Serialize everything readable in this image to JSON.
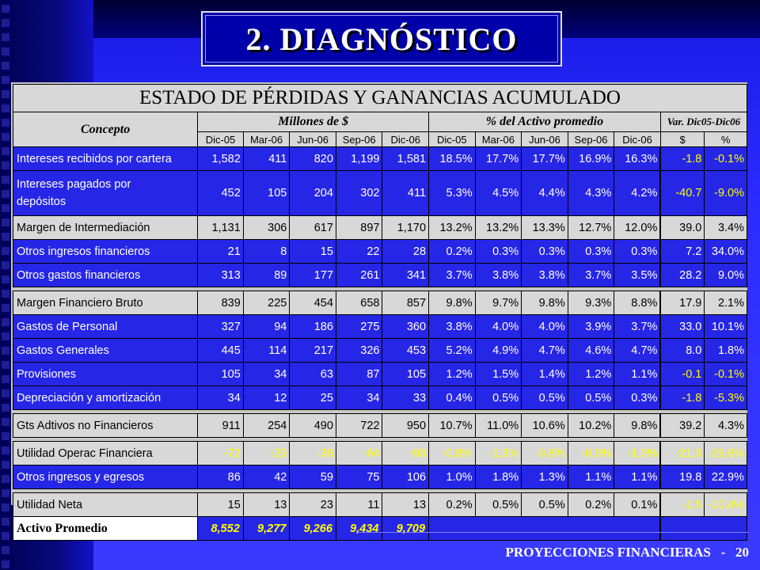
{
  "slide_title": "2. DIAGNÓSTICO",
  "table_title": "ESTADO DE PÉRDIDAS Y GANANCIAS ACUMULADO",
  "header": {
    "concepto": "Concepto",
    "group_millones": "Millones de $",
    "group_pct": "% del Activo promedio",
    "group_var": "Var. Dic05-Dic06",
    "periods": [
      "Dic-05",
      "Mar-06",
      "Jun-06",
      "Sep-06",
      "Dic-06",
      "Dic-05",
      "Mar-06",
      "Jun-06",
      "Sep-06",
      "Dic-06"
    ],
    "var_cols": [
      "$",
      "%"
    ]
  },
  "rows": [
    {
      "label": "Intereses recibidos por cartera",
      "values": [
        "1,582",
        "411",
        "820",
        "1,199",
        "1,581",
        "18.5%",
        "17.7%",
        "17.7%",
        "16.9%",
        "16.3%",
        "-1.8",
        "-0.1%"
      ]
    },
    {
      "label": "Intereses pagados por",
      "label2": "depósitos",
      "values": [
        "452",
        "105",
        "204",
        "302",
        "411",
        "5.3%",
        "4.5%",
        "4.4%",
        "4.3%",
        "4.2%",
        "-40.7",
        "-9.0%"
      ]
    },
    {
      "label": "Margen de Intermediación",
      "values": [
        "1,131",
        "306",
        "617",
        "897",
        "1,170",
        "13.2%",
        "13.2%",
        "13.3%",
        "12.7%",
        "12.0%",
        "39.0",
        "3.4%"
      ]
    },
    {
      "label": "Otros ingresos financieros",
      "values": [
        "21",
        "8",
        "15",
        "22",
        "28",
        "0.2%",
        "0.3%",
        "0.3%",
        "0.3%",
        "0.3%",
        "7.2",
        "34.0%"
      ]
    },
    {
      "label": "Otros gastos financieros",
      "values": [
        "313",
        "89",
        "177",
        "261",
        "341",
        "3.7%",
        "3.8%",
        "3.8%",
        "3.7%",
        "3.5%",
        "28.2",
        "9.0%"
      ]
    },
    {
      "label": "Margen Financiero Bruto",
      "values": [
        "839",
        "225",
        "454",
        "658",
        "857",
        "9.8%",
        "9.7%",
        "9.8%",
        "9.3%",
        "8.8%",
        "17.9",
        "2.1%"
      ]
    },
    {
      "label": "Gastos de Personal",
      "values": [
        "327",
        "94",
        "186",
        "275",
        "360",
        "3.8%",
        "4.0%",
        "4.0%",
        "3.9%",
        "3.7%",
        "33.0",
        "10.1%"
      ]
    },
    {
      "label": "Gastos Generales",
      "values": [
        "445",
        "114",
        "217",
        "326",
        "453",
        "5.2%",
        "4.9%",
        "4.7%",
        "4.6%",
        "4.7%",
        "8.0",
        "1.8%"
      ]
    },
    {
      "label": "Provisiones",
      "values": [
        "105",
        "34",
        "63",
        "87",
        "105",
        "1.2%",
        "1.5%",
        "1.4%",
        "1.2%",
        "1.1%",
        "-0.1",
        "-0.1%"
      ]
    },
    {
      "label": "Depreciación y amortización",
      "values": [
        "34",
        "12",
        "25",
        "34",
        "33",
        "0.4%",
        "0.5%",
        "0.5%",
        "0.5%",
        "0.3%",
        "-1.8",
        "-5.3%"
      ]
    },
    {
      "label": "Gts Adtivos no Financieros",
      "values": [
        "911",
        "254",
        "490",
        "722",
        "950",
        "10.7%",
        "11.0%",
        "10.6%",
        "10.2%",
        "9.8%",
        "39.2",
        "4.3%"
      ]
    },
    {
      "label": "Utilidad Operac Financiera",
      "values": [
        "-72",
        "-29",
        "-36",
        "-64",
        "-93",
        "-0.8%",
        "-1.3%",
        "-0.8%",
        "-0.9%",
        "-1.0%",
        "-21.3",
        "-29.6%"
      ]
    },
    {
      "label": "Otros ingresos y egresos",
      "values": [
        "86",
        "42",
        "59",
        "75",
        "106",
        "1.0%",
        "1.8%",
        "1.3%",
        "1.1%",
        "1.1%",
        "19.8",
        "22.9%"
      ]
    },
    {
      "label": "Utilidad Neta",
      "values": [
        "15",
        "13",
        "23",
        "11",
        "13",
        "0.2%",
        "0.5%",
        "0.5%",
        "0.2%",
        "0.1%",
        "-1.5",
        "-10.4%"
      ]
    }
  ],
  "activo": {
    "label": "Activo Promedio",
    "values": [
      "8,552",
      "9,277",
      "9,266",
      "9,434",
      "9,709"
    ]
  },
  "footer": "PROYECCIONES FINANCIERAS   -   20",
  "colors": {
    "row_blue": "#2626e6",
    "grey": "#d8d8d8",
    "negative": "#ffff00"
  }
}
